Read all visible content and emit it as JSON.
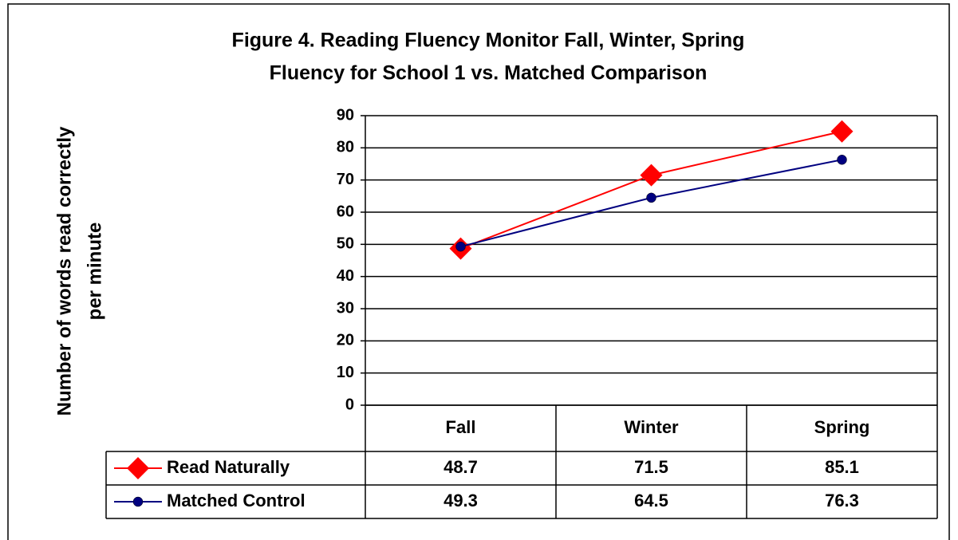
{
  "chart_data": {
    "type": "line",
    "title": [
      "Figure 4.  Reading Fluency Monitor Fall, Winter, Spring",
      "Fluency for School 1 vs. Matched Comparison"
    ],
    "ylabel": [
      "Number of words read correctly",
      "per minute"
    ],
    "categories": [
      "Fall",
      "Winter",
      "Spring"
    ],
    "series": [
      {
        "name": "Read Naturally",
        "color": "#ff0000",
        "marker": "diamond",
        "values": [
          48.7,
          71.5,
          85.1
        ]
      },
      {
        "name": "Matched Control",
        "color": "#000080",
        "marker": "circle",
        "values": [
          49.3,
          64.5,
          76.3
        ]
      }
    ],
    "ylim": [
      0,
      90
    ],
    "yticks": [
      0,
      10,
      20,
      30,
      40,
      50,
      60,
      70,
      80,
      90
    ],
    "grid": true,
    "data_table": true
  }
}
